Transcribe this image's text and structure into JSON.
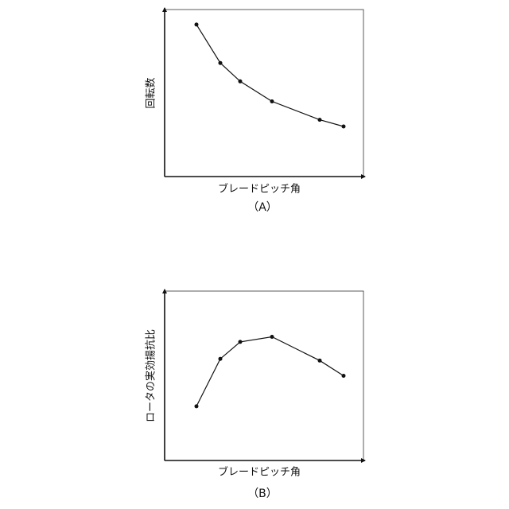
{
  "chart_data": [
    {
      "type": "line",
      "x_label": "ブレードピッチ角",
      "y_label": "回転数",
      "caption": "（A）",
      "xlim": [
        0,
        100
      ],
      "ylim": [
        0,
        100
      ],
      "x": [
        16,
        28,
        38,
        54,
        78,
        90
      ],
      "series": [
        {
          "color": "#111111",
          "values": [
            91,
            68,
            57,
            45,
            34,
            30
          ]
        }
      ]
    },
    {
      "type": "line",
      "x_label": "ブレードピッチ角",
      "y_label": "ロータの実効揚抗比",
      "caption": "（B）",
      "xlim": [
        0,
        100
      ],
      "ylim": [
        0,
        100
      ],
      "x": [
        16,
        28,
        38,
        54,
        78,
        90
      ],
      "series": [
        {
          "color": "#111111",
          "values": [
            32,
            60,
            70,
            73,
            59,
            50
          ]
        }
      ]
    }
  ]
}
